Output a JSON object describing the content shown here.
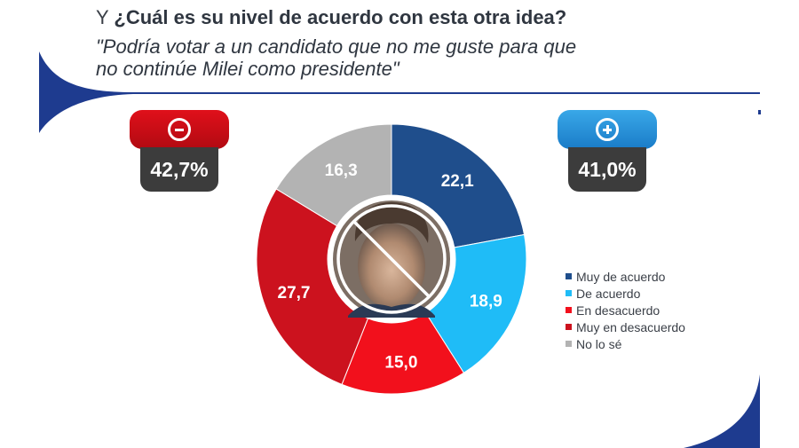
{
  "title": {
    "prefix": "Y",
    "question": "¿Cuál es su nivel de acuerdo con esta otra idea?",
    "quote_line1": "\"Podría votar a un candidato que no me guste para que",
    "quote_line2": "no continúe Milei como presidente\""
  },
  "badges": {
    "negative": {
      "icon": "minus-icon",
      "percent": "42,7%",
      "color": "#d40f17"
    },
    "positive": {
      "icon": "plus-icon",
      "percent": "41,0%",
      "color": "#2a93db"
    }
  },
  "center_image": {
    "icon": "crossed-out-portrait-icon"
  },
  "chart_data": {
    "type": "pie",
    "donut": true,
    "start_angle_deg": 0,
    "direction": "clockwise",
    "title": "¿Cuál es su nivel de acuerdo con esta otra idea?",
    "slices": [
      {
        "label": "Muy de acuerdo",
        "value": 22.1,
        "display": "22,1",
        "color": "#1f4e8c"
      },
      {
        "label": "De acuerdo",
        "value": 18.9,
        "display": "18,9",
        "color": "#1fbcf7"
      },
      {
        "label": "En desacuerdo",
        "value": 15.0,
        "display": "15,0",
        "color": "#f2101c"
      },
      {
        "label": "Muy en desacuerdo",
        "value": 27.7,
        "display": "27,7",
        "color": "#cc121e"
      },
      {
        "label": "No lo sé",
        "value": 16.3,
        "display": "16,3",
        "color": "#b3b3b3"
      }
    ],
    "legend_position": "right"
  }
}
